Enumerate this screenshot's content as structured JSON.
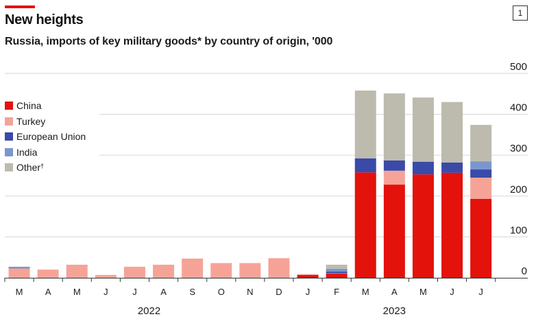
{
  "header": {
    "title": "New heights",
    "subtitle": "Russia, imports of key military goods* by country of origin, '000",
    "chart_number": "1"
  },
  "chart_data": {
    "type": "bar",
    "stacked": true,
    "title": "New heights",
    "subtitle": "Russia, imports of key military goods* by country of origin, '000",
    "xlabel": "",
    "ylabel": "'000",
    "ylim": [
      0,
      500
    ],
    "yticks": [
      0,
      100,
      200,
      300,
      400,
      500
    ],
    "grid": true,
    "legend_position": "left",
    "categories": [
      "M",
      "A",
      "M",
      "J",
      "J",
      "A",
      "S",
      "O",
      "N",
      "D",
      "J",
      "F",
      "M",
      "A",
      "M",
      "J",
      "J"
    ],
    "years": [
      {
        "label": "2022",
        "months": 10
      },
      {
        "label": "2023",
        "months": 7
      }
    ],
    "series": [
      {
        "name": "China",
        "color": "#E3120B",
        "values": [
          0,
          0,
          0,
          0,
          0,
          0,
          0,
          0,
          0,
          0,
          7,
          10,
          258,
          228,
          253,
          257,
          193
        ]
      },
      {
        "name": "Turkey",
        "color": "#F6A397",
        "values": [
          23,
          20,
          32,
          7,
          27,
          32,
          47,
          36,
          36,
          48,
          2,
          1,
          0,
          34,
          0,
          0,
          52
        ]
      },
      {
        "name": "European Union",
        "color": "#3A4AA9",
        "values": [
          1,
          0,
          0,
          0,
          0,
          0,
          0,
          0,
          0,
          0,
          0,
          4,
          34,
          25,
          31,
          25,
          20
        ]
      },
      {
        "name": "India",
        "color": "#7B96CF",
        "values": [
          3,
          0,
          0,
          0,
          0,
          0,
          0,
          0,
          0,
          0,
          0,
          7,
          0,
          0,
          0,
          0,
          20
        ]
      },
      {
        "name": "Other",
        "legend_label": "Other",
        "legend_mark": "†",
        "color": "#BDBBAD",
        "values": [
          0,
          0,
          0,
          0,
          0,
          0,
          0,
          0,
          0,
          0,
          0,
          10,
          166,
          164,
          157,
          148,
          89
        ]
      }
    ]
  }
}
